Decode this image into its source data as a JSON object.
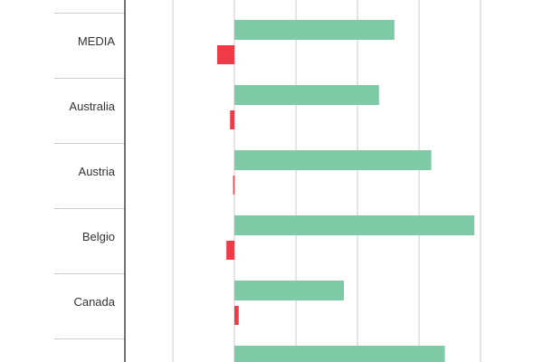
{
  "chart_data": {
    "type": "bar",
    "orientation": "horizontal",
    "title": "",
    "xlabel": "",
    "ylabel": "",
    "grid": true,
    "categories": [
      "MEDIA",
      "Australia",
      "Austria",
      "Belgio",
      "Canada",
      ""
    ],
    "series": [
      {
        "values": [
          2.6,
          2.35,
          3.2,
          3.9,
          1.78,
          3.42
        ]
      },
      {
        "values": [
          -0.28,
          -0.07,
          -0.02,
          -0.13,
          0.07,
          null
        ]
      }
    ],
    "colors": {
      "series1": "#7fcaa6",
      "series2": "#ef3a47",
      "grid": "#cccccc",
      "axis": "#444444"
    }
  }
}
